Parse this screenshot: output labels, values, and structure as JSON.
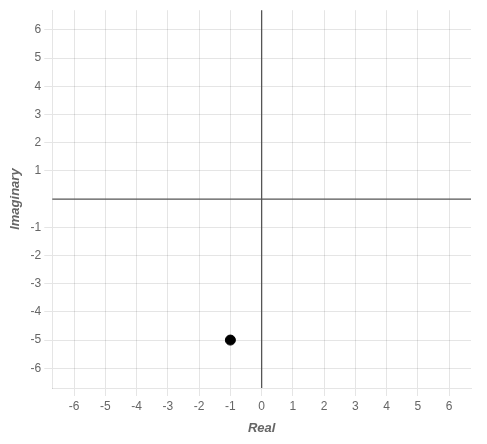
{
  "chart_data": {
    "type": "scatter",
    "x": [
      -1
    ],
    "values": [
      -5
    ],
    "color": "#000000",
    "marker": "circle",
    "xlabel": "Real",
    "ylabel": "Imaginary",
    "xlim": [
      -6.7,
      6.7
    ],
    "ylim": [
      -6.7,
      6.7
    ],
    "xticks": [
      -6,
      -5,
      -4,
      -3,
      -2,
      -1,
      0,
      1,
      2,
      3,
      4,
      5,
      6
    ],
    "yticks": [
      -6,
      -5,
      -4,
      -3,
      -2,
      -1,
      1,
      2,
      3,
      4,
      5,
      6
    ],
    "grid": true
  }
}
